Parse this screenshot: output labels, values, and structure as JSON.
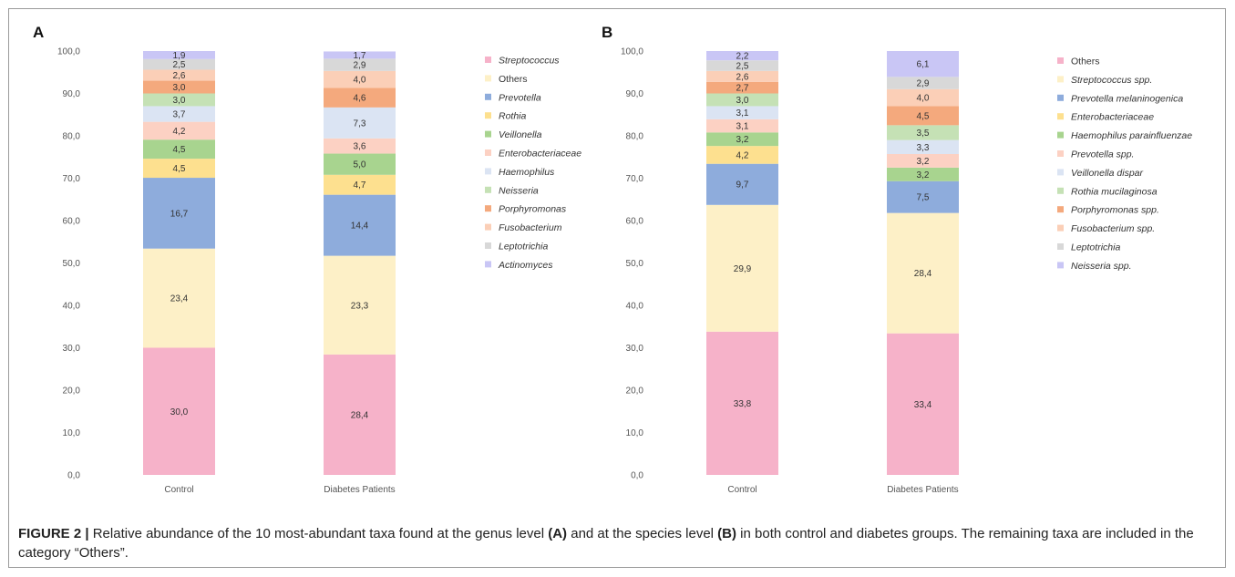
{
  "caption": {
    "label": "FIGURE 2 |",
    "parts": [
      {
        "text": " Relative abundance of the 10 most-abundant taxa found at the genus level ",
        "bold": false
      },
      {
        "text": "(A)",
        "bold": true
      },
      {
        "text": " and at the species level ",
        "bold": false
      },
      {
        "text": "(B)",
        "bold": true
      },
      {
        "text": " in both control and diabetes groups. The remaining taxa are included in the category “Others”.",
        "bold": false
      }
    ]
  },
  "chart_data": [
    {
      "type": "bar",
      "stacked": true,
      "panel_label": "A",
      "categories": [
        "Control",
        "Diabetes Patients"
      ],
      "ylim": [
        0,
        100
      ],
      "yticks": [
        "0,0",
        "10,0",
        "20,0",
        "30,0",
        "40,0",
        "50,0",
        "60,0",
        "70,0",
        "80,0",
        "90,0",
        "100,0"
      ],
      "legend_position": "right",
      "series": [
        {
          "name": "Streptococcus",
          "italic": true,
          "color": "#f6b2c9",
          "values": [
            30.0,
            28.4
          ],
          "labels": [
            "30,0",
            "28,4"
          ]
        },
        {
          "name": "Others",
          "italic": false,
          "color": "#fdf0c7",
          "values": [
            23.4,
            23.3
          ],
          "labels": [
            "23,4",
            "23,3"
          ]
        },
        {
          "name": "Prevotella",
          "italic": true,
          "color": "#8eacdc",
          "values": [
            16.7,
            14.4
          ],
          "labels": [
            "16,7",
            "14,4"
          ]
        },
        {
          "name": "Rothia",
          "italic": true,
          "color": "#fde08f",
          "values": [
            4.5,
            4.7
          ],
          "labels": [
            "4,5",
            "4,7"
          ]
        },
        {
          "name": "Veillonella",
          "italic": true,
          "color": "#a8d48f",
          "values": [
            4.5,
            5.0
          ],
          "labels": [
            "4,5",
            "5,0"
          ]
        },
        {
          "name": "Enterobacteriaceae",
          "italic": true,
          "color": "#fcd1c3",
          "values": [
            4.2,
            3.6
          ],
          "labels": [
            "4,2",
            "3,6"
          ]
        },
        {
          "name": "Haemophilus",
          "italic": true,
          "color": "#dbe4f3",
          "values": [
            3.7,
            7.3
          ],
          "labels": [
            "3,7",
            "7,3"
          ]
        },
        {
          "name": "Neisseria",
          "italic": true,
          "color": "#c5e1b5",
          "values": [
            3.0,
            0.0
          ],
          "labels": [
            "3,0",
            ""
          ]
        },
        {
          "name": "Porphyromonas",
          "italic": true,
          "color": "#f4a97d",
          "values": [
            3.0,
            4.6
          ],
          "labels": [
            "3,0",
            "4,6"
          ]
        },
        {
          "name": "Fusobacterium",
          "italic": true,
          "color": "#fbcfb7",
          "values": [
            2.6,
            4.0
          ],
          "labels": [
            "2,6",
            "4,0"
          ]
        },
        {
          "name": "Leptotrichia",
          "italic": true,
          "color": "#d8d8d8",
          "values": [
            2.5,
            2.9
          ],
          "labels": [
            "2,5",
            "2,9"
          ]
        },
        {
          "name": "Actinomyces",
          "italic": true,
          "color": "#c9c6f5",
          "values": [
            1.9,
            1.7
          ],
          "labels": [
            "1,9",
            "1,7"
          ]
        }
      ]
    },
    {
      "type": "bar",
      "stacked": true,
      "panel_label": "B",
      "categories": [
        "Control",
        "Diabetes Patients"
      ],
      "ylim": [
        0,
        100
      ],
      "yticks": [
        "0,0",
        "10,0",
        "20,0",
        "30,0",
        "40,0",
        "50,0",
        "60,0",
        "70,0",
        "80,0",
        "90,0",
        "100,0"
      ],
      "legend_position": "right",
      "series": [
        {
          "name": "Others",
          "italic": false,
          "color": "#f6b2c9",
          "values": [
            33.8,
            33.4
          ],
          "labels": [
            "33,8",
            "33,4"
          ]
        },
        {
          "name": "Streptococcus spp.",
          "italic": true,
          "color": "#fdf0c7",
          "values": [
            29.9,
            28.4
          ],
          "labels": [
            "29,9",
            "28,4"
          ]
        },
        {
          "name": "Prevotella melaninogenica",
          "italic": true,
          "color": "#8eacdc",
          "values": [
            9.7,
            7.5
          ],
          "labels": [
            "9,7",
            "7,5"
          ]
        },
        {
          "name": "Enterobacteriaceae",
          "italic": true,
          "color": "#fde08f",
          "values": [
            4.2,
            0.0
          ],
          "labels": [
            "4,2",
            ""
          ]
        },
        {
          "name": "Haemophilus parainfluenzae",
          "italic": true,
          "color": "#a8d48f",
          "values": [
            3.2,
            3.2
          ],
          "labels": [
            "3,2",
            "3,2"
          ]
        },
        {
          "name": "Prevotella spp.",
          "italic": true,
          "color": "#fcd1c3",
          "values": [
            3.1,
            3.2
          ],
          "labels": [
            "3,1",
            "3,2"
          ]
        },
        {
          "name": "Veillonella dispar",
          "italic": true,
          "color": "#dbe4f3",
          "values": [
            3.1,
            3.3
          ],
          "labels": [
            "3,1",
            "3,3"
          ]
        },
        {
          "name": "Rothia mucilaginosa",
          "italic": true,
          "color": "#c5e1b5",
          "values": [
            3.0,
            3.5
          ],
          "labels": [
            "3,0",
            "3,5"
          ]
        },
        {
          "name": "Porphyromonas spp.",
          "italic": true,
          "color": "#f4a97d",
          "values": [
            2.7,
            4.5
          ],
          "labels": [
            "2,7",
            "4,5"
          ]
        },
        {
          "name": "Fusobacterium spp.",
          "italic": true,
          "color": "#fbcfb7",
          "values": [
            2.6,
            4.0
          ],
          "labels": [
            "2,6",
            "4,0"
          ]
        },
        {
          "name": "Leptotrichia",
          "italic": true,
          "color": "#d8d8d8",
          "values": [
            2.5,
            2.9
          ],
          "labels": [
            "2,5",
            "2,9"
          ]
        },
        {
          "name": "Neisseria  spp.",
          "italic": true,
          "color": "#c9c6f5",
          "values": [
            2.2,
            6.1
          ],
          "labels": [
            "2,2",
            "6,1"
          ]
        }
      ]
    }
  ]
}
